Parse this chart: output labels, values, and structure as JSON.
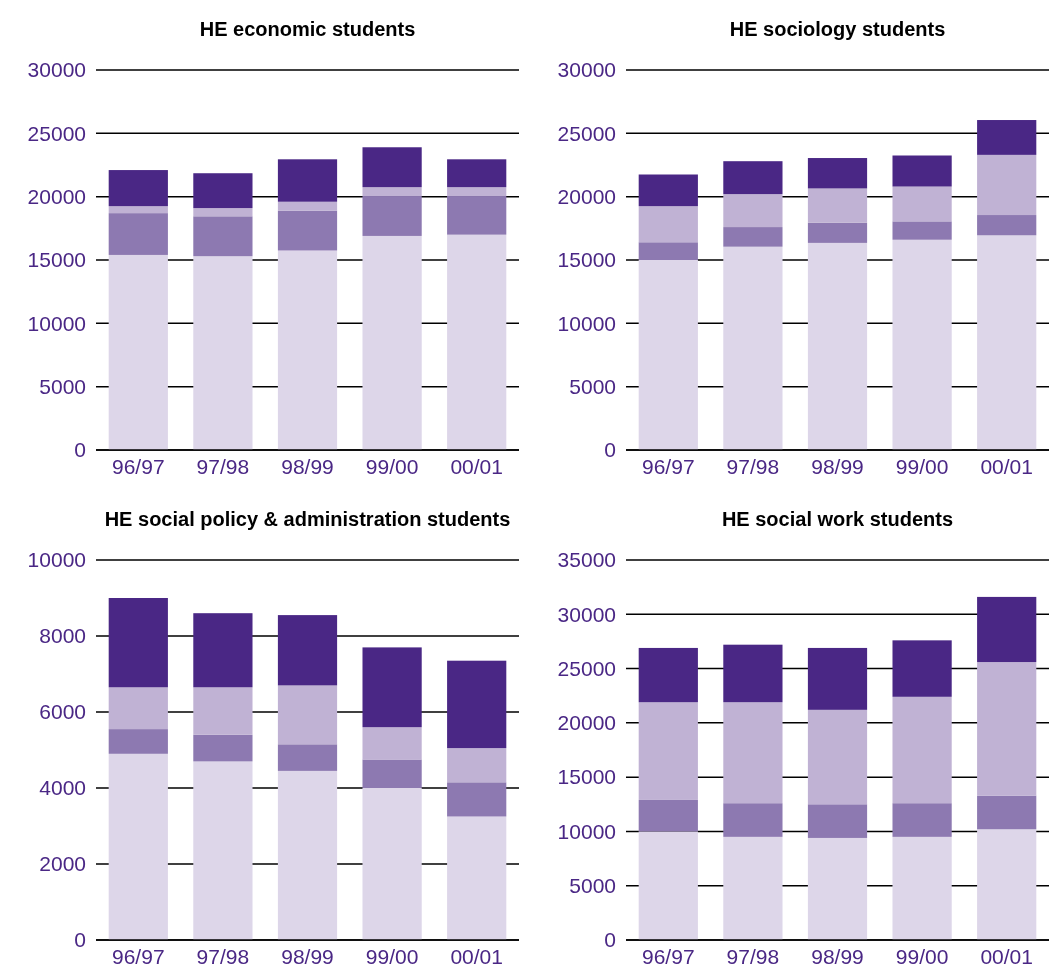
{
  "chart_data": [
    {
      "type": "bar",
      "title": "HE economic students",
      "categories": [
        "96/97",
        "97/98",
        "98/99",
        "99/00",
        "00/01"
      ],
      "stacked": true,
      "grid": "y",
      "ylim": [
        0,
        30000
      ],
      "yticks": [
        0,
        5000,
        10000,
        15000,
        20000,
        25000,
        30000
      ],
      "series": [
        {
          "color": "#ddd6e9",
          "values": [
            15400,
            15300,
            15750,
            16900,
            17000
          ]
        },
        {
          "color": "#8d79b1",
          "values": [
            3300,
            3150,
            3150,
            3150,
            3050
          ]
        },
        {
          "color": "#c0b2d4",
          "values": [
            550,
            650,
            700,
            700,
            700
          ]
        },
        {
          "color": "#4a2785",
          "values": [
            2850,
            2750,
            3350,
            3150,
            2200
          ]
        }
      ]
    },
    {
      "type": "bar",
      "title": "HE sociology students",
      "categories": [
        "96/97",
        "97/98",
        "98/99",
        "99/00",
        "00/01"
      ],
      "stacked": true,
      "grid": "y",
      "ylim": [
        0,
        30000
      ],
      "yticks": [
        0,
        5000,
        10000,
        15000,
        20000,
        25000,
        30000
      ],
      "series": [
        {
          "color": "#ddd6e9",
          "values": [
            15000,
            16050,
            16350,
            16600,
            16950
          ]
        },
        {
          "color": "#8d79b1",
          "values": [
            1400,
            1550,
            1600,
            1450,
            1600
          ]
        },
        {
          "color": "#c0b2d4",
          "values": [
            2850,
            2600,
            2700,
            2750,
            4750
          ]
        },
        {
          "color": "#4a2785",
          "values": [
            2500,
            2600,
            2400,
            2450,
            2750
          ]
        }
      ]
    },
    {
      "type": "bar",
      "title": "HE social policy & administration students",
      "categories": [
        "96/97",
        "97/98",
        "98/99",
        "99/00",
        "00/01"
      ],
      "stacked": true,
      "grid": "y",
      "ylim": [
        0,
        10000
      ],
      "yticks": [
        0,
        2000,
        4000,
        6000,
        8000,
        10000
      ],
      "series": [
        {
          "color": "#ddd6e9",
          "values": [
            4900,
            4700,
            4450,
            4000,
            3250
          ]
        },
        {
          "color": "#8d79b1",
          "values": [
            650,
            700,
            700,
            750,
            900
          ]
        },
        {
          "color": "#c0b2d4",
          "values": [
            1100,
            1250,
            1550,
            850,
            900
          ]
        },
        {
          "color": "#4a2785",
          "values": [
            2350,
            1950,
            1850,
            2100,
            2300
          ]
        }
      ]
    },
    {
      "type": "bar",
      "title": "HE social work students",
      "categories": [
        "96/97",
        "97/98",
        "98/99",
        "99/00",
        "00/01"
      ],
      "stacked": true,
      "grid": "y",
      "ylim": [
        0,
        35000
      ],
      "yticks": [
        0,
        5000,
        10000,
        15000,
        20000,
        25000,
        30000,
        35000
      ],
      "series": [
        {
          "color": "#ddd6e9",
          "values": [
            10000,
            9500,
            9400,
            9500,
            10200
          ]
        },
        {
          "color": "#8d79b1",
          "values": [
            2900,
            3100,
            3100,
            3100,
            3100
          ]
        },
        {
          "color": "#c0b2d4",
          "values": [
            9000,
            9300,
            8700,
            9800,
            12300
          ]
        },
        {
          "color": "#4a2785",
          "values": [
            5000,
            5300,
            5700,
            5200,
            6000
          ]
        }
      ]
    }
  ]
}
